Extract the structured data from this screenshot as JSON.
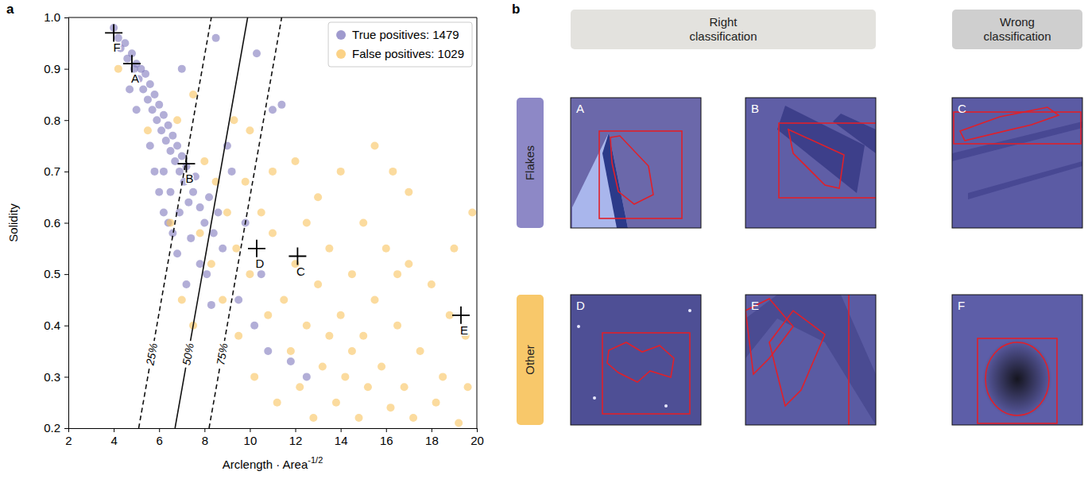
{
  "chart_data": {
    "type": "scatter",
    "panel_label": "a",
    "x_label": "Arclength · Area",
    "x_label_exponent": "-1/2",
    "y_label": "Solidity",
    "xlim": [
      2,
      20
    ],
    "xticks": [
      2,
      4,
      6,
      8,
      10,
      12,
      14,
      16,
      18,
      20
    ],
    "ylim": [
      0.2,
      1.0
    ],
    "yticks": [
      0.2,
      0.3,
      0.4,
      0.5,
      0.6,
      0.7,
      0.8,
      0.9,
      {
        "value": 1.0,
        "label": "1.0"
      }
    ],
    "grid": false,
    "legend": "upper right",
    "series": [
      {
        "name": "True positives: 1479",
        "color": "#7f78bd",
        "marker": "circle",
        "x": [
          4.0,
          4.2,
          4.3,
          4.5,
          4.6,
          4.8,
          4.9,
          5.0,
          5.1,
          5.2,
          5.3,
          5.4,
          5.5,
          5.6,
          5.7,
          5.8,
          5.9,
          6.0,
          6.1,
          6.2,
          6.3,
          6.4,
          6.5,
          6.6,
          6.7,
          6.8,
          6.9,
          7.0,
          7.1,
          7.2,
          5.6,
          5.8,
          6.0,
          6.2,
          6.4,
          6.6,
          6.9,
          7.3,
          7.5,
          7.6,
          7.8,
          8.0,
          8.2,
          8.4,
          8.6,
          8.8,
          7.4,
          7.8,
          8.1,
          6.8,
          9.2,
          9.0,
          7.0,
          8.5,
          10.3,
          11.0,
          11.4,
          9.5,
          10.2,
          10.8,
          12.5,
          11.8,
          9.8,
          10.5,
          7.2,
          8.3,
          6.2,
          6.5,
          5.0,
          4.7
        ],
        "values": [
          0.98,
          0.96,
          0.94,
          0.95,
          0.92,
          0.93,
          0.9,
          0.91,
          0.88,
          0.9,
          0.86,
          0.89,
          0.84,
          0.87,
          0.82,
          0.85,
          0.8,
          0.83,
          0.78,
          0.81,
          0.76,
          0.79,
          0.74,
          0.77,
          0.72,
          0.75,
          0.7,
          0.73,
          0.68,
          0.71,
          0.75,
          0.7,
          0.66,
          0.62,
          0.6,
          0.58,
          0.62,
          0.64,
          0.66,
          0.69,
          0.63,
          0.6,
          0.65,
          0.58,
          0.62,
          0.55,
          0.57,
          0.52,
          0.5,
          0.54,
          0.7,
          0.75,
          0.9,
          0.96,
          0.93,
          0.82,
          0.83,
          0.45,
          0.4,
          0.35,
          0.3,
          0.33,
          0.6,
          0.5,
          0.48,
          0.44,
          0.7,
          0.66,
          0.82,
          0.86
        ]
      },
      {
        "name": "False positives: 1029",
        "color": "#f9c35e",
        "marker": "circle",
        "x": [
          4.2,
          5.5,
          6.8,
          7.5,
          8.0,
          8.5,
          9.0,
          9.4,
          9.8,
          10.0,
          10.5,
          11.0,
          11.5,
          12.0,
          12.5,
          13.0,
          13.5,
          14.0,
          14.5,
          15.0,
          15.5,
          16.0,
          16.5,
          17.0,
          17.5,
          18.0,
          18.5,
          19.0,
          19.5,
          19.8,
          8.8,
          9.5,
          10.2,
          10.8,
          11.2,
          11.8,
          12.2,
          12.8,
          13.2,
          13.8,
          14.2,
          14.8,
          15.2,
          15.8,
          16.2,
          16.8,
          17.2,
          18.2,
          19.2,
          13.0,
          14.0,
          15.5,
          16.3,
          17.0,
          12.0,
          11.0,
          10.0,
          9.3,
          7.8,
          8.3,
          7.0,
          7.5,
          6.5,
          12.5,
          13.5,
          14.5,
          16.5,
          18.8,
          19.6,
          15.0
        ],
        "values": [
          0.9,
          0.78,
          0.8,
          0.85,
          0.72,
          0.68,
          0.62,
          0.55,
          0.68,
          0.5,
          0.62,
          0.58,
          0.45,
          0.52,
          0.6,
          0.48,
          0.55,
          0.42,
          0.5,
          0.38,
          0.45,
          0.55,
          0.4,
          0.52,
          0.35,
          0.48,
          0.3,
          0.55,
          0.38,
          0.62,
          0.45,
          0.38,
          0.3,
          0.42,
          0.25,
          0.35,
          0.28,
          0.22,
          0.32,
          0.25,
          0.3,
          0.22,
          0.28,
          0.32,
          0.24,
          0.28,
          0.22,
          0.25,
          0.21,
          0.65,
          0.7,
          0.75,
          0.7,
          0.66,
          0.72,
          0.7,
          0.78,
          0.8,
          0.58,
          0.52,
          0.45,
          0.4,
          0.6,
          0.4,
          0.38,
          0.35,
          0.5,
          0.42,
          0.28,
          0.6
        ]
      }
    ],
    "decision_lines": [
      {
        "text": "25%",
        "line_style": "dashed",
        "x": [
          5.1,
          8.3
        ],
        "y": [
          0.2,
          1.0
        ]
      },
      {
        "text": "50%",
        "line_style": "solid",
        "x": [
          6.7,
          9.9
        ],
        "y": [
          0.2,
          1.0
        ]
      },
      {
        "text": "75%",
        "line_style": "dashed",
        "x": [
          8.2,
          11.4
        ],
        "y": [
          0.2,
          1.0
        ]
      }
    ],
    "markers": [
      {
        "label": "F",
        "x": 4.0,
        "y": 0.97
      },
      {
        "label": "A",
        "x": 4.8,
        "y": 0.91
      },
      {
        "label": "B",
        "x": 7.2,
        "y": 0.715
      },
      {
        "label": "D",
        "x": 10.3,
        "y": 0.55
      },
      {
        "label": "C",
        "x": 12.1,
        "y": 0.535
      },
      {
        "label": "E",
        "x": 19.3,
        "y": 0.42
      }
    ]
  },
  "panel_b": {
    "letter": "b",
    "columns": [
      "Right classification",
      "Wrong classification"
    ],
    "rows": [
      "Flakes",
      "Other"
    ],
    "tiles": [
      [
        "A",
        "B",
        "C"
      ],
      [
        "D",
        "E",
        "F"
      ]
    ]
  }
}
